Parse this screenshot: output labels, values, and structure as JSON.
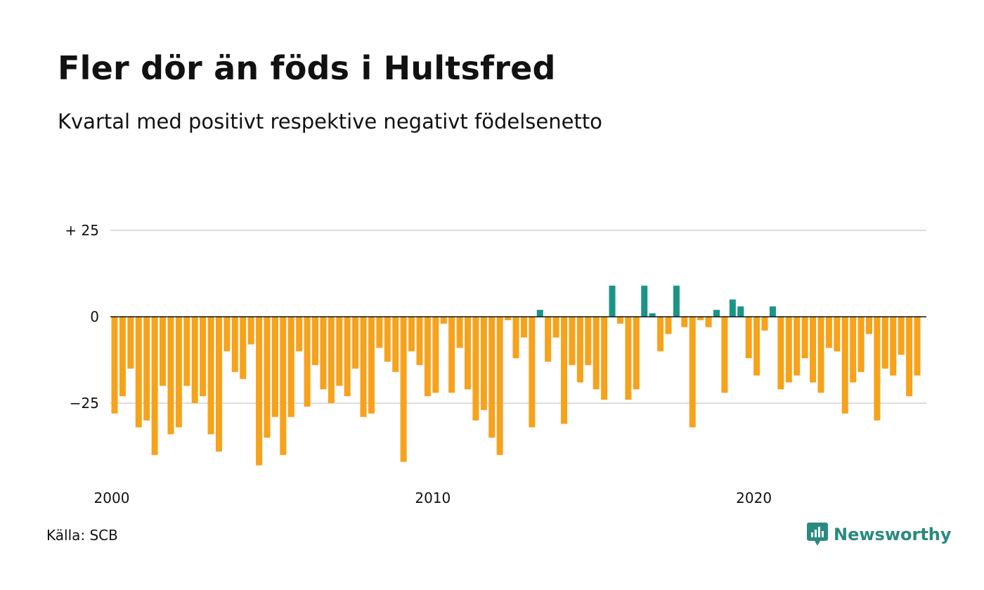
{
  "header": {
    "title": "Fler dör än föds i Hultsfred",
    "subtitle": "Kvartal med positivt respektive negativt födelsenetto"
  },
  "footer": {
    "source": "Källa: SCB",
    "brand": "Newsworthy",
    "brand_icon": "newsworthy-logo-icon"
  },
  "colors": {
    "positive": "#1a9585",
    "negative": "#f7a21b",
    "grid": "#dddddd",
    "baseline": "#111111",
    "brand": "#2a8a80"
  },
  "chart_data": {
    "type": "bar",
    "title": "Fler dör än föds i Hultsfred",
    "subtitle": "Kvartal med positivt respektive negativt födelsenetto",
    "xlabel": "",
    "ylabel": "",
    "ylim": [
      -44,
      25
    ],
    "yticks": [
      {
        "value": 25,
        "label": "+ 25"
      },
      {
        "value": 0,
        "label": "0"
      },
      {
        "value": -25,
        "label": "−25"
      }
    ],
    "xticks": [
      {
        "value": 2000,
        "label": "2000"
      },
      {
        "value": 2010,
        "label": "2010"
      },
      {
        "value": 2020,
        "label": "2020"
      }
    ],
    "start_year": 2000,
    "periods_per_year": 4,
    "grid": true,
    "legend": "none",
    "values": [
      -28,
      -23,
      -15,
      -32,
      -30,
      -40,
      -20,
      -34,
      -32,
      -20,
      -25,
      -23,
      -34,
      -39,
      -10,
      -16,
      -18,
      -8,
      -43,
      -35,
      -29,
      -40,
      -29,
      -10,
      -26,
      -14,
      -21,
      -25,
      -20,
      -23,
      -15,
      -29,
      -28,
      -9,
      -13,
      -16,
      -42,
      -10,
      -14,
      -23,
      -22,
      -2,
      -22,
      -9,
      -21,
      -30,
      -27,
      -35,
      -40,
      -1,
      -12,
      -6,
      -32,
      2,
      -13,
      -6,
      -31,
      -14,
      -19,
      -14,
      -21,
      -24,
      9,
      -2,
      -24,
      -21,
      9,
      1,
      -10,
      -5,
      9,
      -3,
      -32,
      -1,
      -3,
      2,
      -22,
      5,
      3,
      -12,
      -17,
      -4,
      3,
      -21,
      -19,
      -17,
      -12,
      -19,
      -22,
      -9,
      -10,
      -28,
      -19,
      -16,
      -5,
      -30,
      -15,
      -17,
      -11,
      -23,
      -17
    ]
  }
}
